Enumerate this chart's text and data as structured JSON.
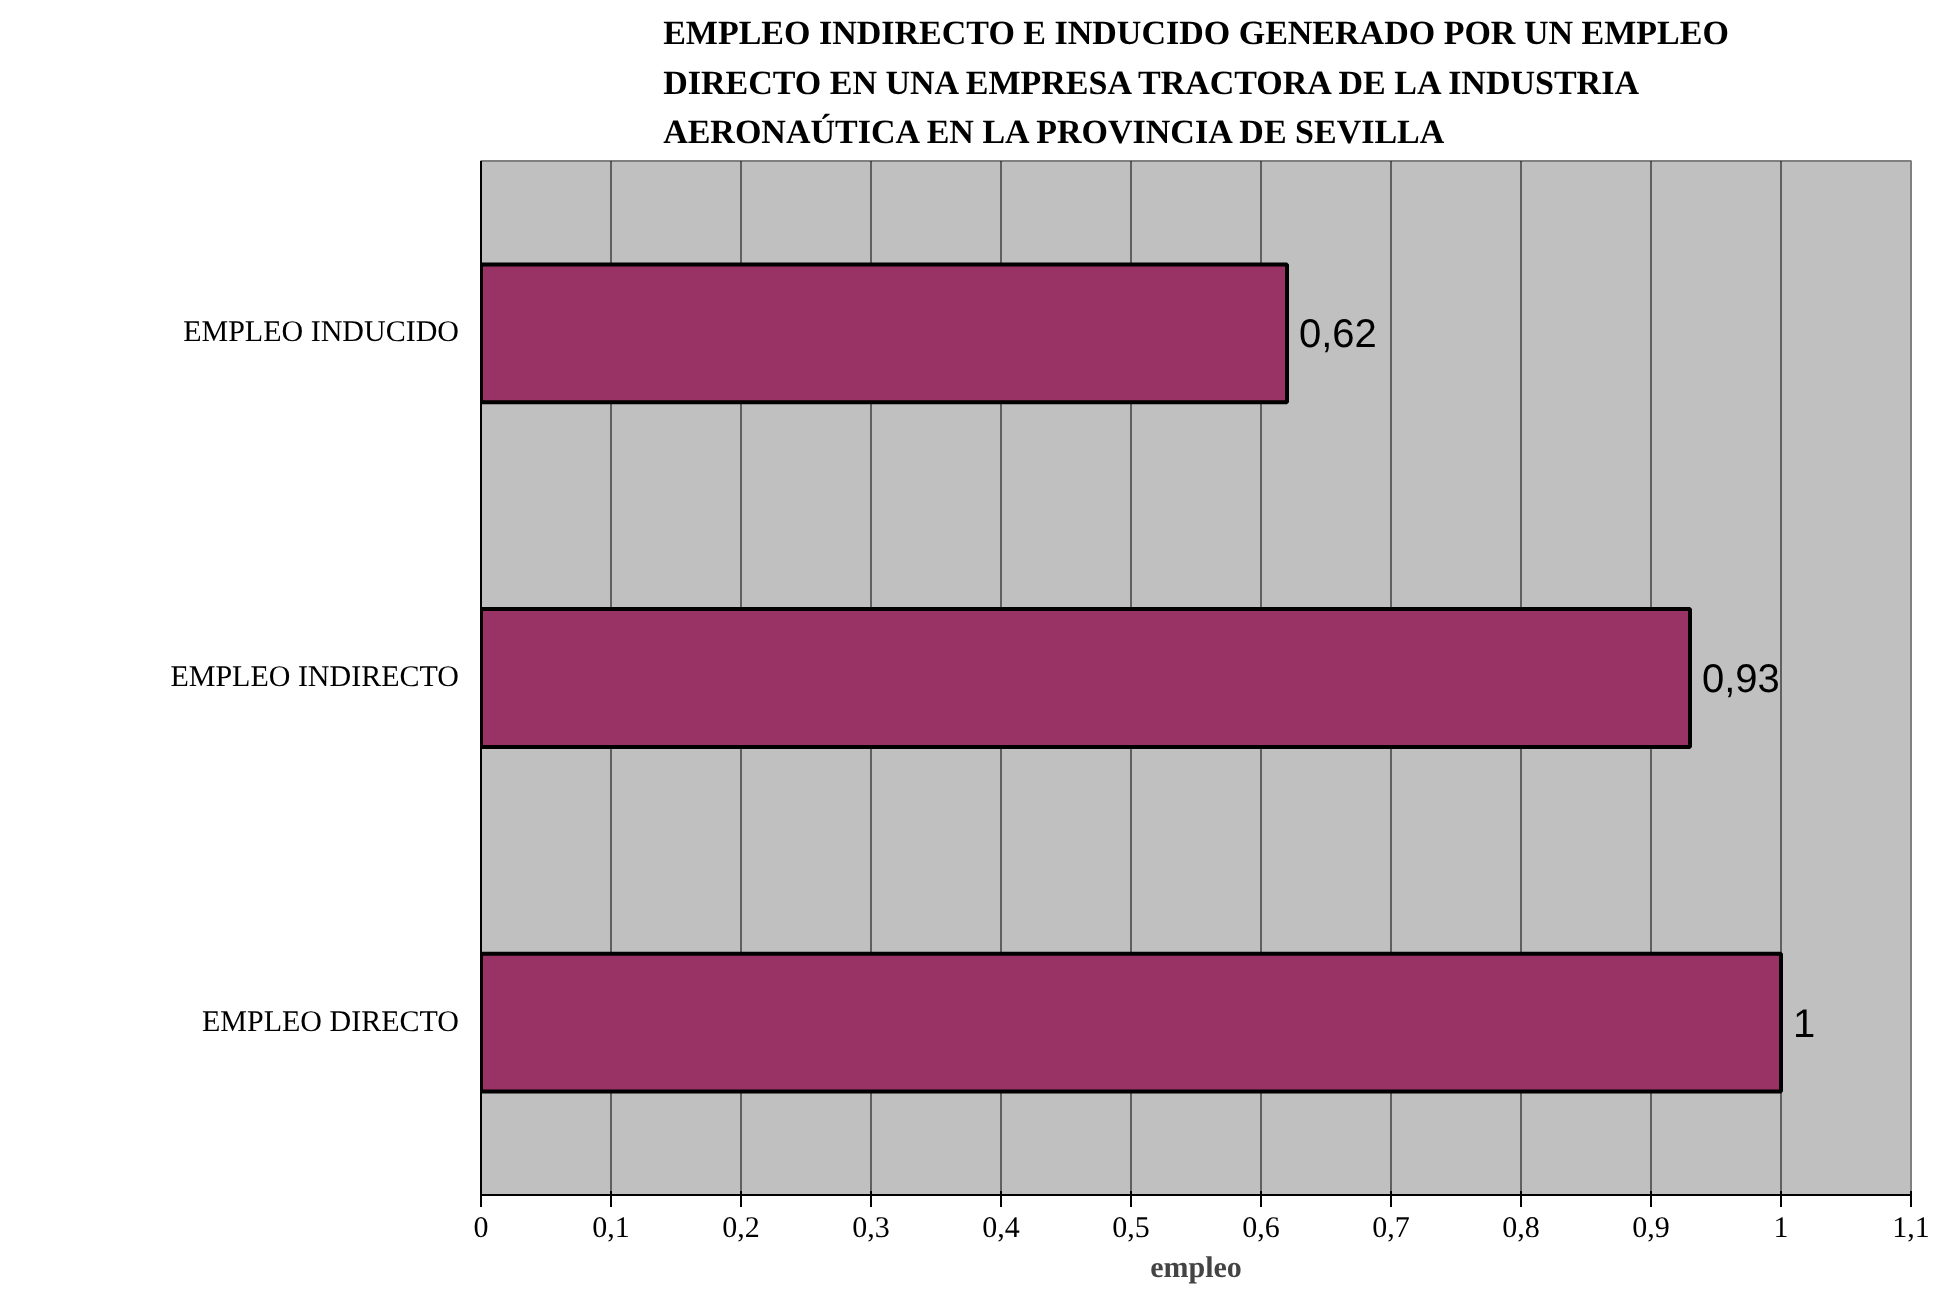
{
  "chart_data": {
    "type": "bar",
    "orientation": "horizontal",
    "title": "EMPLEO INDIRECTO E INDUCIDO GENERADO POR UN EMPLEO DIRECTO EN UNA EMPRESA TRACTORA DE LA INDUSTRIA AERONAÚTICA EN LA PROVINCIA DE SEVILLA",
    "xlabel": "empleo",
    "categories": [
      "EMPLEO INDUCIDO",
      "EMPLEO INDIRECTO",
      "EMPLEO DIRECTO"
    ],
    "values": [
      0.62,
      0.93,
      1
    ],
    "value_labels": [
      "0,62",
      "0,93",
      "1"
    ],
    "color": "#993366",
    "xlim": [
      0,
      1.1
    ],
    "xticks": [
      0,
      {
        "value": 0.1,
        "label": "0,1"
      },
      {
        "value": 0.2,
        "label": "0,2"
      },
      {
        "value": 0.3,
        "label": "0,3"
      },
      {
        "value": 0.4,
        "label": "0,4"
      },
      {
        "value": 0.5,
        "label": "0,5"
      },
      {
        "value": 0.6,
        "label": "0,6"
      },
      {
        "value": 0.7,
        "label": "0,7"
      },
      {
        "value": 0.8,
        "label": "0,8"
      },
      {
        "value": 0.9,
        "label": "0,9"
      },
      1,
      {
        "value": 1.1,
        "label": "1,1"
      }
    ],
    "grid": "x"
  }
}
